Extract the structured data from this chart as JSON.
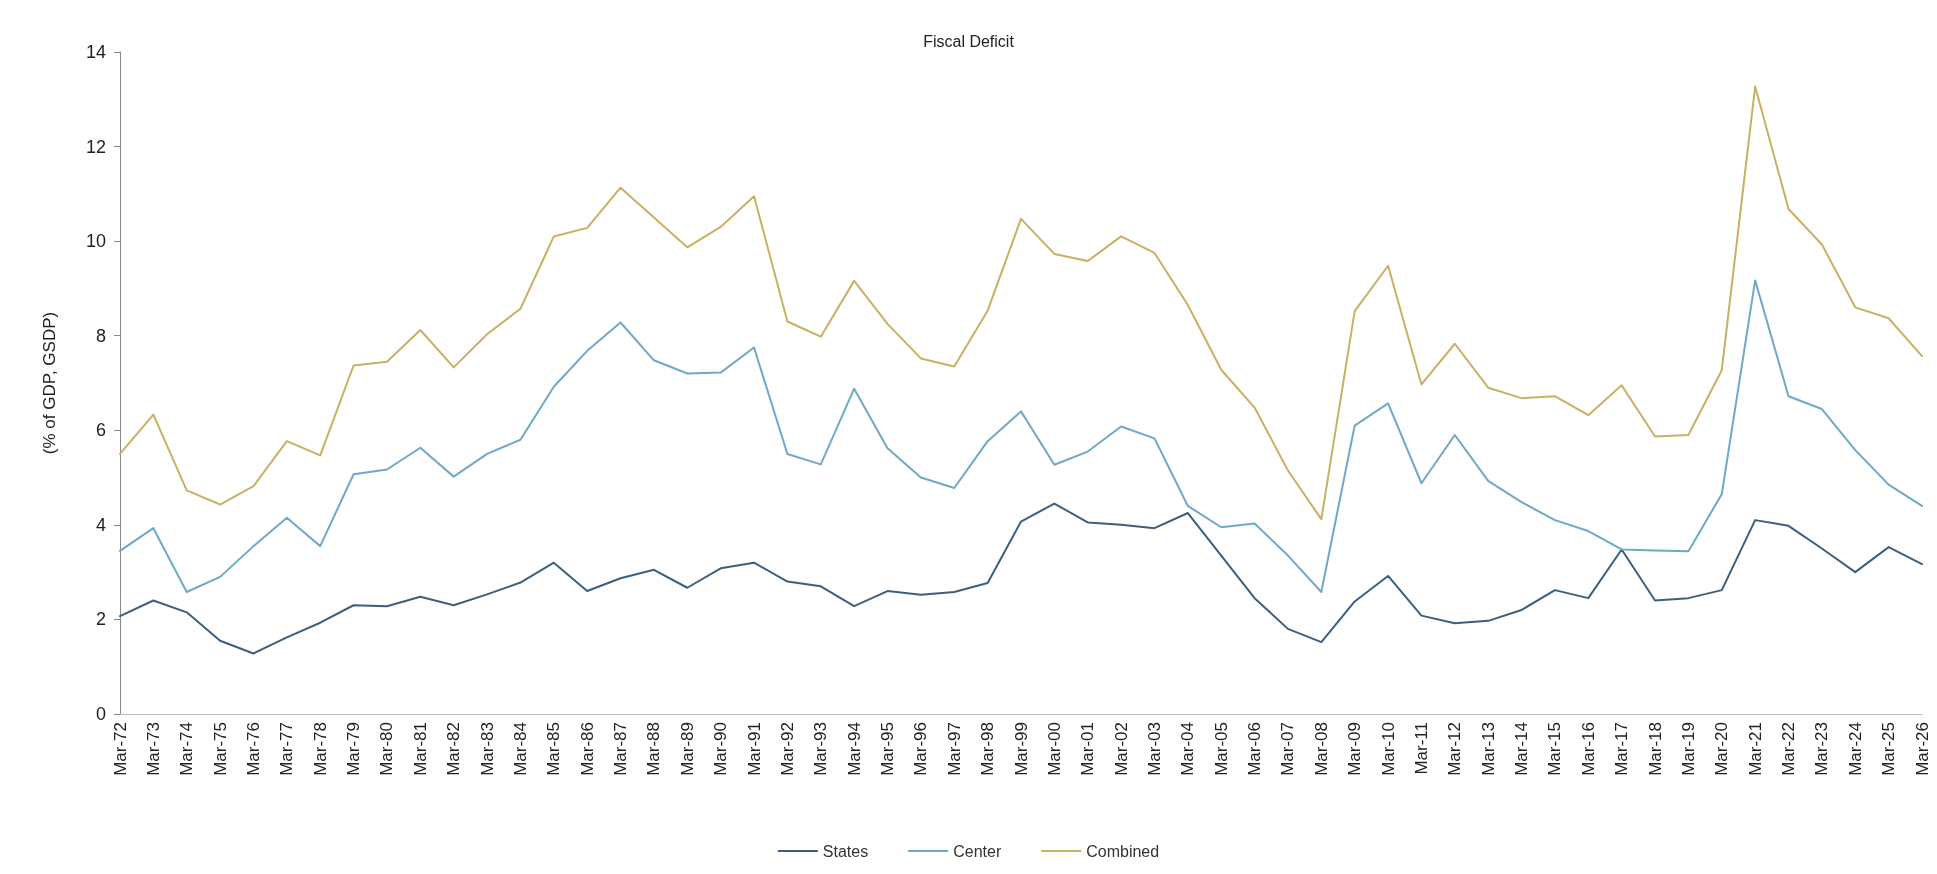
{
  "chart_data": {
    "type": "line",
    "title": "Fiscal Deficit",
    "ylabel": "(% of GDP, GSDP)",
    "categories": [
      "Mar-72",
      "Mar-73",
      "Mar-74",
      "Mar-75",
      "Mar-76",
      "Mar-77",
      "Mar-78",
      "Mar-79",
      "Mar-80",
      "Mar-81",
      "Mar-82",
      "Mar-83",
      "Mar-84",
      "Mar-85",
      "Mar-86",
      "Mar-87",
      "Mar-88",
      "Mar-89",
      "Mar-90",
      "Mar-91",
      "Mar-92",
      "Mar-93",
      "Mar-94",
      "Mar-95",
      "Mar-96",
      "Mar-97",
      "Mar-98",
      "Mar-99",
      "Mar-00",
      "Mar-01",
      "Mar-02",
      "Mar-03",
      "Mar-04",
      "Mar-05",
      "Mar-06",
      "Mar-07",
      "Mar-08",
      "Mar-09",
      "Mar-10",
      "Mar-11",
      "Mar-12",
      "Mar-13",
      "Mar-14",
      "Mar-15",
      "Mar-16",
      "Mar-17",
      "Mar-18",
      "Mar-19",
      "Mar-20",
      "Mar-21",
      "Mar-22",
      "Mar-23",
      "Mar-24",
      "Mar-25",
      "Mar-26"
    ],
    "series": [
      {
        "name": "States",
        "color": "#3d5f7e",
        "values": [
          2.07,
          2.4,
          2.15,
          1.55,
          1.28,
          1.62,
          1.93,
          2.3,
          2.28,
          2.48,
          2.3,
          2.53,
          2.78,
          3.2,
          2.6,
          2.87,
          3.05,
          2.67,
          3.08,
          3.2,
          2.8,
          2.7,
          2.28,
          2.6,
          2.52,
          2.58,
          2.77,
          4.07,
          4.45,
          4.05,
          4.0,
          3.93,
          4.25,
          3.35,
          2.45,
          1.8,
          1.52,
          2.38,
          2.92,
          2.08,
          1.92,
          1.97,
          2.2,
          2.62,
          2.45,
          3.48,
          2.4,
          2.45,
          2.62,
          4.1,
          3.98,
          3.5,
          3.0,
          3.53,
          3.17
        ]
      },
      {
        "name": "Center",
        "color": "#6fa8c8",
        "values": [
          3.45,
          3.93,
          2.58,
          2.9,
          3.55,
          4.15,
          3.55,
          5.07,
          5.17,
          5.63,
          5.02,
          5.5,
          5.8,
          6.92,
          7.68,
          8.28,
          7.48,
          7.2,
          7.22,
          7.75,
          5.5,
          5.28,
          6.88,
          5.62,
          5.0,
          4.78,
          5.77,
          6.4,
          5.27,
          5.55,
          6.08,
          5.83,
          4.4,
          3.95,
          4.03,
          3.35,
          2.58,
          6.1,
          6.57,
          4.88,
          5.9,
          4.93,
          4.48,
          4.1,
          3.87,
          3.48,
          3.46,
          3.44,
          4.65,
          9.17,
          6.72,
          6.45,
          5.58,
          4.85,
          4.4
        ]
      },
      {
        "name": "Combined",
        "color": "#c9b062",
        "values": [
          5.5,
          6.33,
          4.73,
          4.43,
          4.82,
          5.77,
          5.47,
          7.37,
          7.45,
          8.12,
          7.33,
          8.03,
          8.57,
          10.1,
          10.28,
          11.13,
          10.5,
          9.87,
          10.3,
          10.95,
          8.3,
          7.98,
          9.16,
          8.25,
          7.52,
          7.35,
          8.53,
          10.47,
          9.73,
          9.58,
          10.1,
          9.75,
          8.65,
          7.28,
          6.48,
          5.15,
          4.12,
          8.52,
          9.48,
          6.97,
          7.83,
          6.9,
          6.68,
          6.72,
          6.32,
          6.95,
          5.87,
          5.9,
          7.27,
          13.27,
          10.68,
          9.93,
          8.6,
          8.37,
          7.57
        ]
      }
    ],
    "ylim": [
      0,
      14
    ],
    "yticks": [
      0,
      2,
      4,
      6,
      8,
      10,
      12,
      14
    ],
    "grid": false,
    "legend": "bottom",
    "marker": "none",
    "line_style": "solid"
  }
}
